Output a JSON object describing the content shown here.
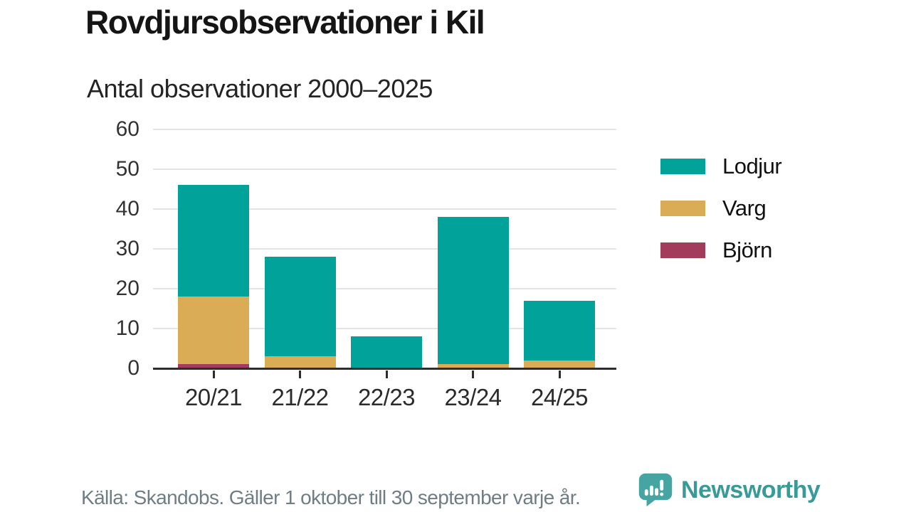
{
  "header": {
    "title": "Rovdjursobservationer i Kil",
    "subtitle": "Antal observationer 2000–2025"
  },
  "chart_data": {
    "type": "bar",
    "stacked": true,
    "title": "Rovdjursobservationer i Kil",
    "subtitle": "Antal observationer 2000–2025",
    "categories": [
      "20/21",
      "21/22",
      "22/23",
      "23/24",
      "24/25"
    ],
    "series": [
      {
        "name": "Björn",
        "color": "#a33b5c",
        "values": [
          1,
          0,
          0,
          0,
          0
        ]
      },
      {
        "name": "Varg",
        "color": "#d9ac55",
        "values": [
          17,
          3,
          0,
          1,
          2
        ]
      },
      {
        "name": "Lodjur",
        "color": "#00a29a",
        "values": [
          28,
          25,
          8,
          37,
          15
        ]
      }
    ],
    "stack_order_bottom_to_top": [
      "Björn",
      "Varg",
      "Lodjur"
    ],
    "totals": [
      46,
      28,
      8,
      38,
      17
    ],
    "ylim": [
      0,
      60
    ],
    "yticks": [
      0,
      10,
      20,
      30,
      40,
      50,
      60
    ],
    "grid": "horizontal",
    "legend": {
      "position": "right",
      "items": [
        {
          "label": "Lodjur",
          "color": "#00a29a"
        },
        {
          "label": "Varg",
          "color": "#d9ac55"
        },
        {
          "label": "Björn",
          "color": "#a33b5c"
        }
      ]
    }
  },
  "footer": {
    "source": "Källa: Skandobs. Gäller 1 oktober till 30 september varje år.",
    "brand": "Newsworthy"
  },
  "colors": {
    "teal": "#00a29a",
    "gold": "#d9ac55",
    "maroon": "#a33b5c",
    "grid": "#e4e4e4",
    "axis": "#2d2d2d",
    "source_text": "#6f7d85",
    "brand_teal": "#46a5a2",
    "brand_text": "#389b98"
  }
}
